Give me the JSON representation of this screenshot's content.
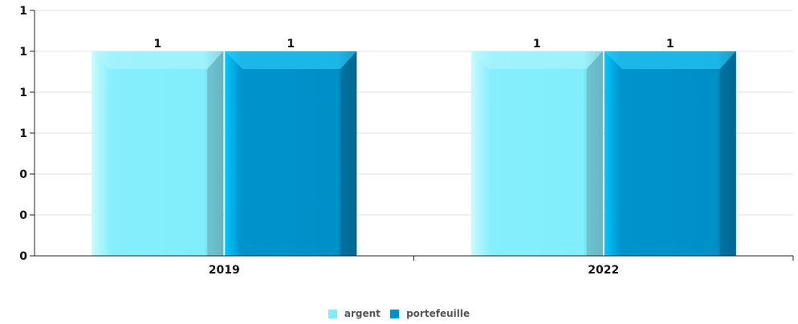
{
  "chart_data": {
    "type": "bar",
    "categories": [
      "2019",
      "2022"
    ],
    "series": [
      {
        "name": "argent",
        "values": [
          1,
          1
        ],
        "labels": [
          "1",
          "1"
        ],
        "color": "#80EEFF"
      },
      {
        "name": "portefeuille",
        "values": [
          1,
          1
        ],
        "labels": [
          "1",
          "1"
        ],
        "color": "#0090C8"
      }
    ],
    "yticks": [
      {
        "value": 0,
        "label": "0"
      },
      {
        "value": 0.2,
        "label": "0"
      },
      {
        "value": 0.4,
        "label": "0"
      },
      {
        "value": 0.6,
        "label": "1"
      },
      {
        "value": 0.8,
        "label": "1"
      },
      {
        "value": 1.0,
        "label": "1"
      },
      {
        "value": 1.2,
        "label": "1"
      }
    ],
    "ylim": [
      0,
      1.2
    ],
    "grid": true,
    "legend_position": "bottom-center",
    "title": "",
    "xlabel": "",
    "ylabel": ""
  },
  "legend": {
    "items": [
      {
        "label": "argent",
        "color": "#80EEFF"
      },
      {
        "label": "portefeuille",
        "color": "#0090C8"
      }
    ]
  }
}
